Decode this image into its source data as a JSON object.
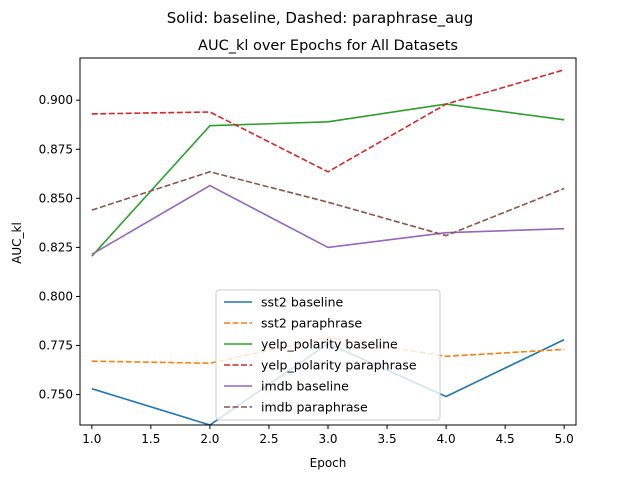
{
  "chart_data": {
    "type": "line",
    "suptitle": "Solid: baseline, Dashed: paraphrase_aug",
    "title": "AUC_kl over Epochs for All Datasets",
    "xlabel": "Epoch",
    "ylabel": "AUC_kl",
    "xlim": [
      0.9,
      5.1
    ],
    "ylim": [
      0.7345,
      0.9215
    ],
    "xticks": [
      1.0,
      1.5,
      2.0,
      2.5,
      3.0,
      3.5,
      4.0,
      4.5,
      5.0
    ],
    "xtick_labels": [
      "1.0",
      "1.5",
      "2.0",
      "2.5",
      "3.0",
      "3.5",
      "4.0",
      "4.5",
      "5.0"
    ],
    "yticks": [
      0.75,
      0.775,
      0.8,
      0.825,
      0.85,
      0.875,
      0.9
    ],
    "ytick_labels": [
      "0.750",
      "0.775",
      "0.800",
      "0.825",
      "0.850",
      "0.875",
      "0.900"
    ],
    "grid": false,
    "legend_position": "lower-center",
    "x": [
      1,
      2,
      3,
      4,
      5
    ],
    "series": [
      {
        "name": "sst2 baseline",
        "color": "#1f77b4",
        "dashed": false,
        "values": [
          0.753,
          0.7345,
          0.776,
          0.749,
          0.778
        ]
      },
      {
        "name": "sst2 paraphrase",
        "color": "#ff7f0e",
        "dashed": true,
        "values": [
          0.767,
          0.766,
          0.779,
          0.7695,
          0.773
        ]
      },
      {
        "name": "yelp_polarity baseline",
        "color": "#2ca02c",
        "dashed": false,
        "values": [
          0.8205,
          0.887,
          0.889,
          0.898,
          0.89
        ]
      },
      {
        "name": "yelp_polarity paraphrase",
        "color": "#d62728",
        "dashed": true,
        "values": [
          0.893,
          0.894,
          0.8635,
          0.898,
          0.9155
        ]
      },
      {
        "name": "imdb baseline",
        "color": "#9467bd",
        "dashed": false,
        "values": [
          0.8215,
          0.8565,
          0.825,
          0.8325,
          0.8345
        ]
      },
      {
        "name": "imdb paraphrase",
        "color": "#8c564b",
        "dashed": true,
        "values": [
          0.844,
          0.8635,
          0.848,
          0.831,
          0.855
        ]
      }
    ]
  }
}
